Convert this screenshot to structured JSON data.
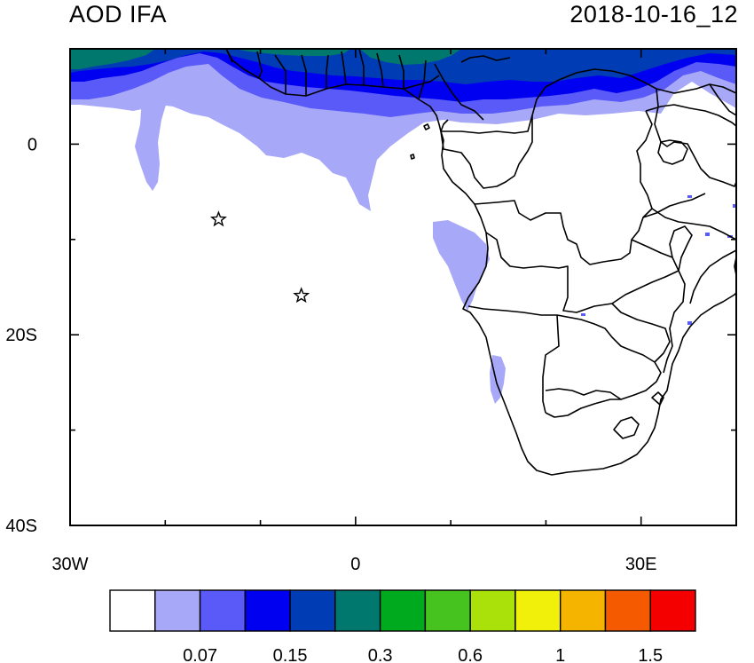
{
  "title_left": "AOD IFA",
  "title_right": "2018-10-16_12",
  "map": {
    "lon_range": [
      -30,
      40
    ],
    "lat_range": [
      -40,
      10
    ],
    "x_ticks": [
      {
        "value": -30,
        "label": "30W"
      },
      {
        "value": 0,
        "label": "0"
      },
      {
        "value": 30,
        "label": "30E"
      }
    ],
    "y_ticks": [
      {
        "value": 0,
        "label": "0"
      },
      {
        "value": -20,
        "label": "20S"
      },
      {
        "value": -40,
        "label": "40S"
      }
    ],
    "station_markers": [
      {
        "name": "star-marker-ascension",
        "lon": -14.4,
        "lat": -7.9
      },
      {
        "name": "star-marker-st-helena",
        "lon": -5.7,
        "lat": -15.9
      }
    ]
  },
  "colorbar": {
    "colors": [
      "#ffffff",
      "#a8a8f8",
      "#5a5af8",
      "#0000f0",
      "#003cb4",
      "#00786e",
      "#00aa1e",
      "#46c31e",
      "#aae10a",
      "#f0f00a",
      "#f5b400",
      "#f55a00",
      "#f50000"
    ],
    "labels": [
      {
        "text": "0.07",
        "boundary": 2
      },
      {
        "text": "0.15",
        "boundary": 4
      },
      {
        "text": "0.3",
        "boundary": 6
      },
      {
        "text": "0.6",
        "boundary": 8
      },
      {
        "text": "1",
        "boundary": 10
      },
      {
        "text": "1.5",
        "boundary": 12
      }
    ]
  }
}
